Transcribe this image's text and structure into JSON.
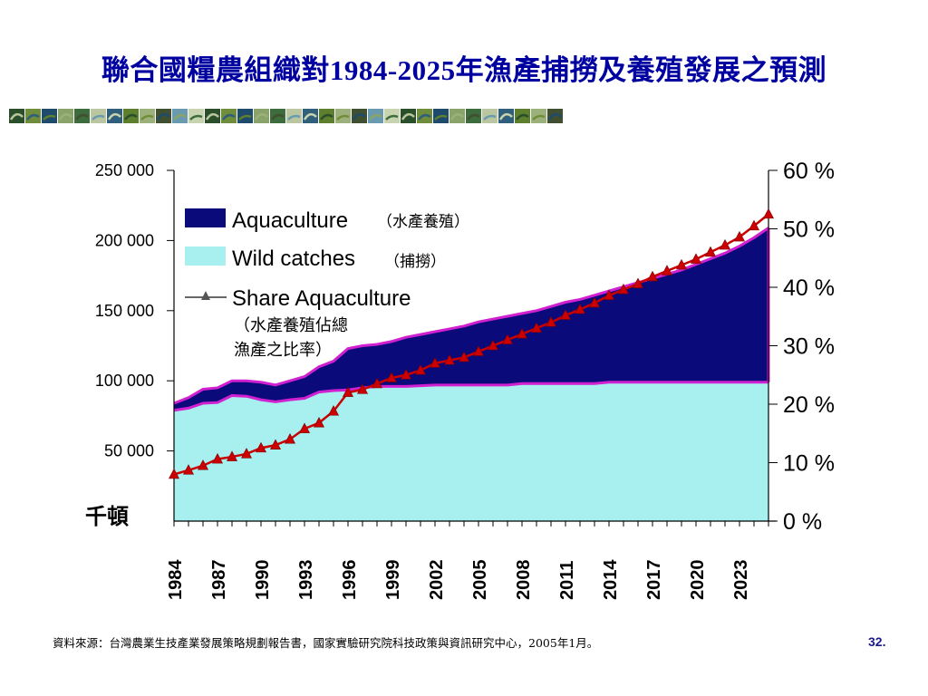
{
  "title": "聯合國糧農組織對1984-2025年漁產捕撈及養殖發展之預測",
  "source": "資料來源：台灣農業生技產業發展策略規劃報告書，國家實驗研究院科技政策與資訊研究中心，2005年1月。",
  "page_number": "32.",
  "unit_label": "千頓",
  "colors": {
    "title": "#0000a0",
    "aquaculture": "#0a0a7a",
    "wild_catches": "#a8f0f0",
    "share_line": "#cc0000",
    "share_marker": "#cc0000",
    "outline": "#d020d0"
  },
  "chart_data": {
    "type": "area",
    "title": "",
    "xlabel": "",
    "ylabel": "千頓",
    "ylim": [
      0,
      250000
    ],
    "y2lim": [
      0,
      60
    ],
    "y_ticks": [
      "250 000",
      "200 000",
      "150 000",
      "100 000",
      "50 000"
    ],
    "y2_ticks": [
      "60 %",
      "50 %",
      "40 %",
      "30 %",
      "20 %",
      "10 %",
      "0 %"
    ],
    "x_tick_labels": [
      "1984",
      "1987",
      "1990",
      "1993",
      "1996",
      "1999",
      "2002",
      "2005",
      "2008",
      "2011",
      "2014",
      "2017",
      "2020",
      "2023"
    ],
    "legend": {
      "placement": "top-left",
      "entries": [
        {
          "label": "Aquaculture",
          "note": "（水產養殖）"
        },
        {
          "label": "Wild catches",
          "note": "（捕撈）"
        },
        {
          "label": "Share Aquaculture",
          "note_line1": "（水產養殖佔總",
          "note_line2": "漁產之比率）"
        }
      ]
    },
    "x": [
      1984,
      1985,
      1986,
      1987,
      1988,
      1989,
      1990,
      1991,
      1992,
      1993,
      1994,
      1995,
      1996,
      1997,
      1998,
      1999,
      2000,
      2001,
      2002,
      2003,
      2004,
      2005,
      2006,
      2007,
      2008,
      2009,
      2010,
      2011,
      2012,
      2013,
      2014,
      2015,
      2016,
      2017,
      2018,
      2019,
      2020,
      2021,
      2022,
      2023,
      2024,
      2025
    ],
    "series": [
      {
        "name": "Wild catches",
        "values": [
          79000,
          80500,
          84000,
          84500,
          89500,
          89000,
          86500,
          85000,
          86500,
          87500,
          92000,
          93000,
          93500,
          95000,
          96000,
          96000,
          96000,
          96500,
          97000,
          97000,
          97000,
          97000,
          97000,
          97000,
          98000,
          98000,
          98000,
          98000,
          98000,
          98000,
          99000,
          99000,
          99000,
          99000,
          99000,
          99000,
          99000,
          99000,
          99000,
          99000,
          99000,
          99000
        ]
      },
      {
        "name": "Aquaculture",
        "values": [
          84000,
          88000,
          94000,
          95000,
          100000,
          100000,
          99000,
          97000,
          100000,
          103000,
          110000,
          114000,
          123000,
          125000,
          126000,
          128000,
          131000,
          133000,
          135000,
          137000,
          139000,
          142000,
          144000,
          146000,
          148000,
          150000,
          153000,
          156000,
          158000,
          161000,
          164000,
          167000,
          170000,
          173000,
          176000,
          179000,
          183000,
          187000,
          191000,
          196000,
          202000,
          209000
        ]
      },
      {
        "name": "Share Aquaculture",
        "values": [
          8.0,
          8.7,
          9.5,
          10.6,
          11.0,
          11.5,
          12.5,
          13.0,
          14.0,
          15.8,
          16.8,
          18.8,
          22.0,
          22.5,
          23.5,
          24.5,
          25.0,
          25.8,
          27.0,
          27.5,
          28.0,
          29.0,
          30.0,
          31.0,
          32.0,
          33.0,
          34.0,
          35.2,
          36.2,
          37.3,
          38.6,
          39.6,
          40.6,
          41.8,
          42.8,
          43.8,
          44.8,
          46.0,
          47.2,
          48.6,
          50.5,
          52.5
        ]
      }
    ]
  }
}
